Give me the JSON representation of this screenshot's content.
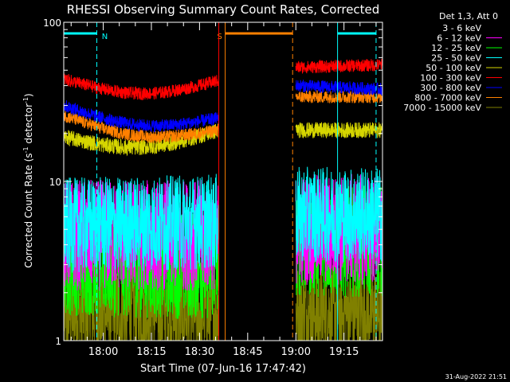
{
  "chart_data": {
    "type": "line",
    "title": "RHESSI Observing Summary Count Rates, Corrected",
    "xlabel": "Start Time (07-Jun-16 17:47:42)",
    "ylabel_main": "Corrected Count Rate (s",
    "ylabel_sup1": "-1",
    "ylabel_mid": " detector",
    "ylabel_sup2": "-1",
    "ylabel_end": ")",
    "y_scale": "log",
    "ylim": [
      1,
      100
    ],
    "xlim": [
      "17:47:42",
      "19:27:00"
    ],
    "x_ticks": [
      "18:00",
      "18:15",
      "18:30",
      "18:45",
      "19:00",
      "19:15"
    ],
    "y_ticks": [
      "1",
      "10",
      "100"
    ],
    "legend_title": "Det 1,3, Att 0",
    "legend_position": "top-right outside",
    "footer_date": "31-Aug-2022 21:51",
    "segments": [
      {
        "start": "17:47:42",
        "end": "18:36:00"
      },
      {
        "start": "19:00:00",
        "end": "19:27:00"
      }
    ],
    "series": [
      {
        "name": "3 - 6 keV",
        "color": "#ffffff",
        "seg1": [
          1.0,
          1.0
        ],
        "seg2": [
          1.0,
          1.0
        ],
        "noise": 0.0
      },
      {
        "name": "6 - 12 keV",
        "color": "#ff00ff",
        "seg1": [
          4.6,
          4.6
        ],
        "seg2": [
          5.0,
          5.0
        ],
        "noise": 0.14
      },
      {
        "name": "12 - 25 keV",
        "color": "#00ff00",
        "seg1": [
          3.2,
          3.0
        ],
        "seg2": [
          4.2,
          4.2
        ],
        "noise": 0.14
      },
      {
        "name": "25 - 50 keV",
        "color": "#00ffff",
        "seg1": [
          5.3,
          5.6
        ],
        "seg2": [
          6.2,
          6.2
        ],
        "noise": 0.12
      },
      {
        "name": "50 - 100 keV",
        "color": "#d6d600",
        "seg1": [
          19,
          21
        ],
        "seg2": [
          21,
          21
        ],
        "noise": 0.05
      },
      {
        "name": "100 - 300 keV",
        "color": "#ff0000",
        "seg1": [
          44,
          43
        ],
        "seg2": [
          52,
          54
        ],
        "noise": 0.04
      },
      {
        "name": "300 - 800 keV",
        "color": "#0000ff",
        "seg1": [
          30,
          25
        ],
        "seg2": [
          40,
          38
        ],
        "noise": 0.04
      },
      {
        "name": "800 - 7000 keV",
        "color": "#ff8000",
        "seg1": [
          26,
          21
        ],
        "seg2": [
          34,
          34
        ],
        "noise": 0.04
      },
      {
        "name": "7000 - 15000 keV",
        "color": "#808000",
        "seg1": [
          1.5,
          1.5
        ],
        "seg2": [
          1.5,
          1.5
        ],
        "noise": 0.12
      }
    ],
    "annotations": [
      {
        "label": "N",
        "color": "#00ffff",
        "bar_start": "17:47:42",
        "bar_end": "17:58:00",
        "line_style": "dashed",
        "line_at": "17:58:00"
      },
      {
        "label": "",
        "color": "#00ffff",
        "bar_start": "19:13:00",
        "bar_end": "19:25:00",
        "line_style": "solid",
        "line_at": "19:13:00"
      },
      {
        "label": "",
        "color": "#00ffff",
        "line_style": "dashed",
        "line_at": "19:25:00"
      },
      {
        "label": "S",
        "color": "#ff8000",
        "bar_start": "18:38:00",
        "bar_end": "18:59:00",
        "line_style": "solid",
        "line_at": "18:38:00"
      },
      {
        "label": "",
        "color": "#ff8000",
        "line_style": "dashed",
        "line_at": "18:59:00"
      },
      {
        "label": "",
        "color": "#ff0000",
        "line_style": "solid",
        "line_at": "18:36:00"
      }
    ]
  }
}
